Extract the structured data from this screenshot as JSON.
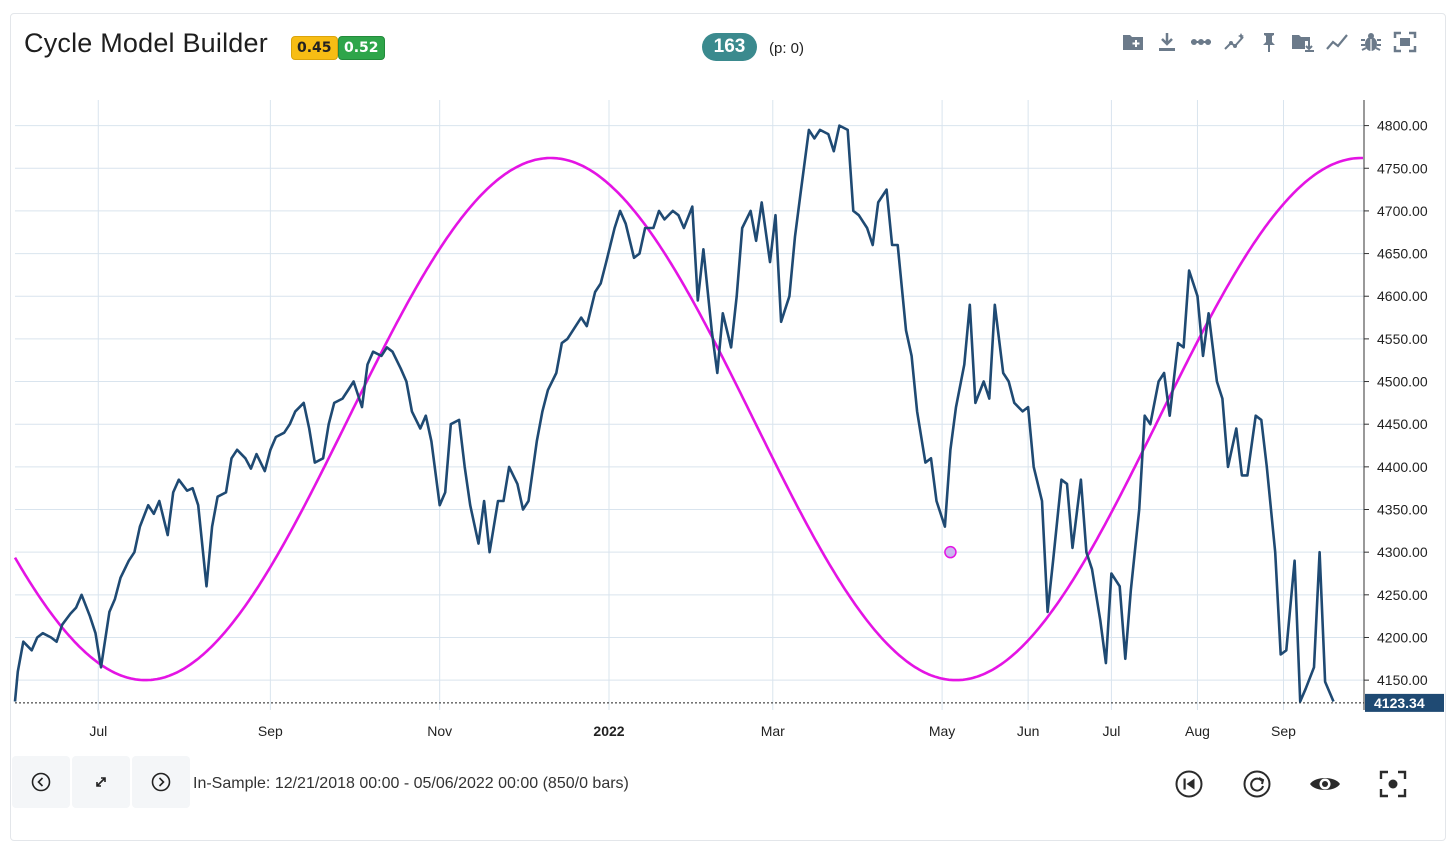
{
  "header": {
    "title": "Cycle Model Builder",
    "badge_yellow": "0.45",
    "badge_green": "0.52",
    "count": "163",
    "count_sub": "(p: 0)"
  },
  "toolbar": [
    {
      "icon": "folder-add-icon"
    },
    {
      "icon": "download-icon"
    },
    {
      "icon": "dots-line-icon"
    },
    {
      "icon": "trend-markers-icon"
    },
    {
      "icon": "pin-icon"
    },
    {
      "icon": "folder-download-icon"
    },
    {
      "icon": "line-chart-icon"
    },
    {
      "icon": "bug-icon"
    },
    {
      "icon": "fullscreen-icon"
    }
  ],
  "footer": {
    "in_sample": "In-Sample: 12/21/2018 00:00 - 05/06/2022 00:00 (850/0 bars)",
    "nav": [
      {
        "icon": "chevron-left-icon"
      },
      {
        "icon": "expand-icon"
      },
      {
        "icon": "chevron-right-icon"
      }
    ],
    "controls": [
      {
        "icon": "skip-back-icon"
      },
      {
        "icon": "refresh-icon"
      },
      {
        "icon": "eye-icon"
      },
      {
        "icon": "focus-icon"
      }
    ]
  },
  "colors": {
    "price": "#1f4a73",
    "cycle": "#e414e4",
    "grid": "#d9e4ee",
    "last_price_bg": "#1f4a73",
    "pill": "#3b8a8e"
  },
  "chart_data": {
    "type": "line",
    "x_range": [
      "2021-06-01",
      "2022-09-30"
    ],
    "ylim": [
      4115,
      4830
    ],
    "y_ticks": [
      "4150.00",
      "4200.00",
      "4250.00",
      "4300.00",
      "4350.00",
      "4400.00",
      "4450.00",
      "4500.00",
      "4550.00",
      "4600.00",
      "4650.00",
      "4700.00",
      "4750.00",
      "4800.00"
    ],
    "x_ticks": [
      {
        "label": "Jul",
        "date": "2021-07-01",
        "bold": false
      },
      {
        "label": "Sep",
        "date": "2021-09-01",
        "bold": false
      },
      {
        "label": "Nov",
        "date": "2021-11-01",
        "bold": false
      },
      {
        "label": "2022",
        "date": "2022-01-01",
        "bold": true
      },
      {
        "label": "Mar",
        "date": "2022-03-01",
        "bold": false
      },
      {
        "label": "May",
        "date": "2022-05-01",
        "bold": false
      },
      {
        "label": "Jun",
        "date": "2022-06-01",
        "bold": false
      },
      {
        "label": "Jul",
        "date": "2022-07-01",
        "bold": false
      },
      {
        "label": "Aug",
        "date": "2022-08-01",
        "bold": false
      },
      {
        "label": "Sep",
        "date": "2022-09-01",
        "bold": false
      }
    ],
    "last_price_label": "4123.34",
    "last_price": 4123.34,
    "marker": {
      "date": "2022-05-04",
      "value": 4300
    },
    "series": [
      {
        "role": "price",
        "points": [
          [
            "2021-06-01",
            4125
          ],
          [
            "2021-06-02",
            4160
          ],
          [
            "2021-06-04",
            4195
          ],
          [
            "2021-06-07",
            4185
          ],
          [
            "2021-06-09",
            4200
          ],
          [
            "2021-06-11",
            4205
          ],
          [
            "2021-06-14",
            4200
          ],
          [
            "2021-06-16",
            4195
          ],
          [
            "2021-06-18",
            4215
          ],
          [
            "2021-06-21",
            4228
          ],
          [
            "2021-06-23",
            4235
          ],
          [
            "2021-06-25",
            4250
          ],
          [
            "2021-06-28",
            4225
          ],
          [
            "2021-06-30",
            4205
          ],
          [
            "2021-07-02",
            4165
          ],
          [
            "2021-07-05",
            4230
          ],
          [
            "2021-07-07",
            4245
          ],
          [
            "2021-07-09",
            4270
          ],
          [
            "2021-07-12",
            4290
          ],
          [
            "2021-07-14",
            4300
          ],
          [
            "2021-07-16",
            4330
          ],
          [
            "2021-07-19",
            4355
          ],
          [
            "2021-07-21",
            4345
          ],
          [
            "2021-07-23",
            4360
          ],
          [
            "2021-07-26",
            4320
          ],
          [
            "2021-07-28",
            4370
          ],
          [
            "2021-07-30",
            4385
          ],
          [
            "2021-08-02",
            4372
          ],
          [
            "2021-08-04",
            4375
          ],
          [
            "2021-08-06",
            4355
          ],
          [
            "2021-08-09",
            4260
          ],
          [
            "2021-08-11",
            4330
          ],
          [
            "2021-08-13",
            4365
          ],
          [
            "2021-08-16",
            4370
          ],
          [
            "2021-08-18",
            4410
          ],
          [
            "2021-08-20",
            4420
          ],
          [
            "2021-08-23",
            4410
          ],
          [
            "2021-08-25",
            4398
          ],
          [
            "2021-08-27",
            4415
          ],
          [
            "2021-08-30",
            4395
          ],
          [
            "2021-09-01",
            4420
          ],
          [
            "2021-09-03",
            4435
          ],
          [
            "2021-09-06",
            4440
          ],
          [
            "2021-09-08",
            4450
          ],
          [
            "2021-09-10",
            4465
          ],
          [
            "2021-09-13",
            4475
          ],
          [
            "2021-09-15",
            4445
          ],
          [
            "2021-09-17",
            4405
          ],
          [
            "2021-09-20",
            4410
          ],
          [
            "2021-09-22",
            4450
          ],
          [
            "2021-09-24",
            4475
          ],
          [
            "2021-09-27",
            4480
          ],
          [
            "2021-09-29",
            4490
          ],
          [
            "2021-10-01",
            4500
          ],
          [
            "2021-10-04",
            4470
          ],
          [
            "2021-10-06",
            4520
          ],
          [
            "2021-10-08",
            4535
          ],
          [
            "2021-10-11",
            4530
          ],
          [
            "2021-10-13",
            4540
          ],
          [
            "2021-10-15",
            4535
          ],
          [
            "2021-10-18",
            4515
          ],
          [
            "2021-10-20",
            4500
          ],
          [
            "2021-10-22",
            4465
          ],
          [
            "2021-10-25",
            4445
          ],
          [
            "2021-10-27",
            4460
          ],
          [
            "2021-10-29",
            4430
          ],
          [
            "2021-11-01",
            4355
          ],
          [
            "2021-11-03",
            4370
          ],
          [
            "2021-11-05",
            4450
          ],
          [
            "2021-11-08",
            4455
          ],
          [
            "2021-11-10",
            4400
          ],
          [
            "2021-11-12",
            4355
          ],
          [
            "2021-11-15",
            4310
          ],
          [
            "2021-11-17",
            4360
          ],
          [
            "2021-11-19",
            4300
          ],
          [
            "2021-11-22",
            4360
          ],
          [
            "2021-11-24",
            4360
          ],
          [
            "2021-11-26",
            4400
          ],
          [
            "2021-11-29",
            4380
          ],
          [
            "2021-12-01",
            4350
          ],
          [
            "2021-12-03",
            4360
          ],
          [
            "2021-12-06",
            4430
          ],
          [
            "2021-12-08",
            4465
          ],
          [
            "2021-12-10",
            4490
          ],
          [
            "2021-12-13",
            4510
          ],
          [
            "2021-12-15",
            4545
          ],
          [
            "2021-12-17",
            4550
          ],
          [
            "2021-12-20",
            4565
          ],
          [
            "2021-12-22",
            4575
          ],
          [
            "2021-12-24",
            4565
          ],
          [
            "2021-12-27",
            4605
          ],
          [
            "2021-12-29",
            4615
          ],
          [
            "2021-12-31",
            4640
          ],
          [
            "2022-01-03",
            4680
          ],
          [
            "2022-01-05",
            4700
          ],
          [
            "2022-01-07",
            4685
          ],
          [
            "2022-01-10",
            4645
          ],
          [
            "2022-01-12",
            4650
          ],
          [
            "2022-01-14",
            4680
          ],
          [
            "2022-01-17",
            4680
          ],
          [
            "2022-01-19",
            4700
          ],
          [
            "2022-01-21",
            4690
          ],
          [
            "2022-01-24",
            4700
          ],
          [
            "2022-01-26",
            4695
          ],
          [
            "2022-01-28",
            4680
          ],
          [
            "2022-01-31",
            4705
          ],
          [
            "2022-02-02",
            4595
          ],
          [
            "2022-02-04",
            4655
          ],
          [
            "2022-02-07",
            4560
          ],
          [
            "2022-02-09",
            4510
          ],
          [
            "2022-02-11",
            4580
          ],
          [
            "2022-02-14",
            4540
          ],
          [
            "2022-02-16",
            4600
          ],
          [
            "2022-02-18",
            4680
          ],
          [
            "2022-02-21",
            4700
          ],
          [
            "2022-02-23",
            4665
          ],
          [
            "2022-02-25",
            4710
          ],
          [
            "2022-02-28",
            4640
          ],
          [
            "2022-03-02",
            4695
          ],
          [
            "2022-03-04",
            4570
          ],
          [
            "2022-03-07",
            4600
          ],
          [
            "2022-03-09",
            4670
          ],
          [
            "2022-03-11",
            4720
          ],
          [
            "2022-03-14",
            4795
          ],
          [
            "2022-03-16",
            4785
          ],
          [
            "2022-03-18",
            4795
          ],
          [
            "2022-03-21",
            4790
          ],
          [
            "2022-03-23",
            4770
          ],
          [
            "2022-03-25",
            4800
          ],
          [
            "2022-03-28",
            4795
          ],
          [
            "2022-03-30",
            4700
          ],
          [
            "2022-04-01",
            4695
          ],
          [
            "2022-04-04",
            4680
          ],
          [
            "2022-04-06",
            4660
          ],
          [
            "2022-04-08",
            4710
          ],
          [
            "2022-04-11",
            4725
          ],
          [
            "2022-04-13",
            4660
          ],
          [
            "2022-04-15",
            4660
          ],
          [
            "2022-04-18",
            4560
          ],
          [
            "2022-04-20",
            4530
          ],
          [
            "2022-04-22",
            4465
          ],
          [
            "2022-04-25",
            4405
          ],
          [
            "2022-04-27",
            4410
          ],
          [
            "2022-04-29",
            4360
          ],
          [
            "2022-05-02",
            4330
          ],
          [
            "2022-05-04",
            4420
          ],
          [
            "2022-05-06",
            4470
          ],
          [
            "2022-05-09",
            4520
          ],
          [
            "2022-05-11",
            4590
          ],
          [
            "2022-05-13",
            4475
          ],
          [
            "2022-05-16",
            4500
          ],
          [
            "2022-05-18",
            4480
          ],
          [
            "2022-05-20",
            4590
          ],
          [
            "2022-05-23",
            4510
          ],
          [
            "2022-05-25",
            4500
          ],
          [
            "2022-05-27",
            4475
          ],
          [
            "2022-05-30",
            4465
          ],
          [
            "2022-06-01",
            4470
          ],
          [
            "2022-06-03",
            4400
          ],
          [
            "2022-06-06",
            4360
          ],
          [
            "2022-06-08",
            4230
          ],
          [
            "2022-06-10",
            4290
          ],
          [
            "2022-06-13",
            4385
          ],
          [
            "2022-06-15",
            4380
          ],
          [
            "2022-06-17",
            4305
          ],
          [
            "2022-06-20",
            4385
          ],
          [
            "2022-06-22",
            4300
          ],
          [
            "2022-06-24",
            4280
          ],
          [
            "2022-06-27",
            4220
          ],
          [
            "2022-06-29",
            4170
          ],
          [
            "2022-07-01",
            4275
          ],
          [
            "2022-07-04",
            4260
          ],
          [
            "2022-07-06",
            4175
          ],
          [
            "2022-07-08",
            4255
          ],
          [
            "2022-07-11",
            4350
          ],
          [
            "2022-07-13",
            4460
          ],
          [
            "2022-07-15",
            4450
          ],
          [
            "2022-07-18",
            4500
          ],
          [
            "2022-07-20",
            4510
          ],
          [
            "2022-07-22",
            4460
          ],
          [
            "2022-07-25",
            4545
          ],
          [
            "2022-07-27",
            4540
          ],
          [
            "2022-07-29",
            4630
          ],
          [
            "2022-08-01",
            4600
          ],
          [
            "2022-08-03",
            4530
          ],
          [
            "2022-08-05",
            4580
          ],
          [
            "2022-08-08",
            4500
          ],
          [
            "2022-08-10",
            4480
          ],
          [
            "2022-08-12",
            4400
          ],
          [
            "2022-08-15",
            4445
          ],
          [
            "2022-08-17",
            4390
          ],
          [
            "2022-08-19",
            4390
          ],
          [
            "2022-08-22",
            4460
          ],
          [
            "2022-08-24",
            4455
          ],
          [
            "2022-08-26",
            4400
          ],
          [
            "2022-08-29",
            4300
          ],
          [
            "2022-08-31",
            4180
          ],
          [
            "2022-09-02",
            4185
          ],
          [
            "2022-09-05",
            4290
          ],
          [
            "2022-09-07",
            4125
          ],
          [
            "2022-09-09",
            4140
          ],
          [
            "2022-09-12",
            4165
          ],
          [
            "2022-09-14",
            4300
          ],
          [
            "2022-09-16",
            4148
          ],
          [
            "2022-09-19",
            4125
          ]
        ]
      },
      {
        "role": "cycle",
        "center": 4456,
        "amplitude": 306,
        "period_days": 292,
        "peak_date": "2021-12-11"
      }
    ]
  }
}
